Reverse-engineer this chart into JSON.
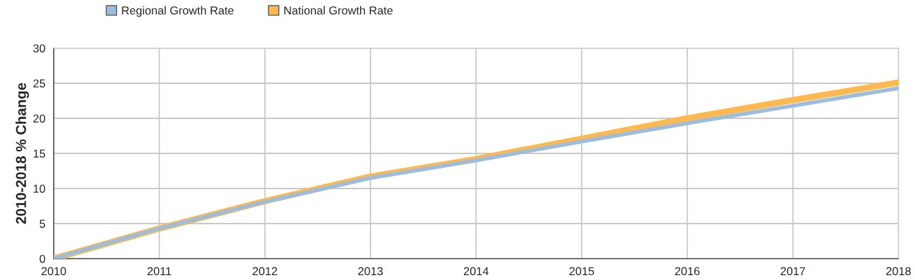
{
  "chart_data": {
    "type": "line",
    "ylabel": "2010-2018 % Change",
    "x": [
      2010,
      2011,
      2012,
      2013,
      2014,
      2015,
      2016,
      2017,
      2018
    ],
    "series": [
      {
        "name": "Regional Growth Rate",
        "color": "#9dbde0",
        "values": [
          0,
          4.3,
          8.1,
          11.5,
          14.0,
          16.7,
          19.3,
          21.8,
          24.3
        ]
      },
      {
        "name": "National Growth Rate",
        "color": "#fdb94d",
        "values": [
          0,
          4.3,
          8.2,
          11.7,
          14.2,
          17.1,
          20.0,
          22.6,
          25.1
        ]
      }
    ],
    "xlim": [
      2010,
      2018
    ],
    "xticks": [
      2010,
      2011,
      2012,
      2013,
      2014,
      2015,
      2016,
      2017,
      2018
    ],
    "ylim": [
      0,
      30
    ],
    "yticks": [
      0,
      5,
      10,
      15,
      20,
      25,
      30
    ],
    "grid": true,
    "legend": "top left",
    "marker": "none",
    "line_style": "solid"
  }
}
